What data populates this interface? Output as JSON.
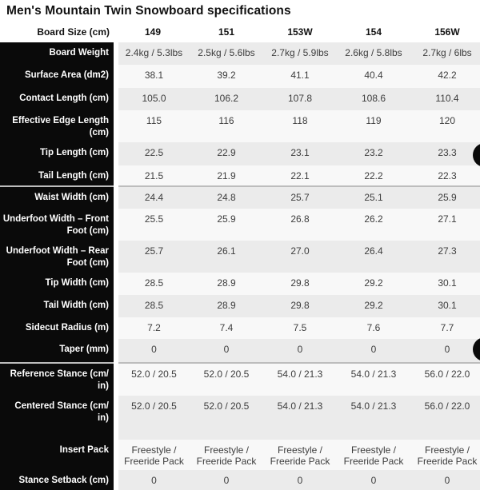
{
  "title": "Men's Mountain Twin Snowboard specifications",
  "colors": {
    "label_column_bg": "#0a0a0a",
    "label_text": "#ffffff",
    "stripe_gray": "#ebebeb",
    "stripe_light": "#f8f8f8",
    "group_separator": "#bdbdbd",
    "floating_button": "#0a0a0a"
  },
  "table": {
    "header": {
      "label": "Board Size (cm)",
      "columns": [
        "149",
        "151",
        "153W",
        "154",
        "156W"
      ]
    },
    "rows": [
      {
        "label": "Board Weight",
        "values": [
          "2.4kg / 5.3lbs",
          "2.5kg / 5.6lbs",
          "2.7kg / 5.9lbs",
          "2.6kg / 5.8lbs",
          "2.7kg / 6lbs"
        ]
      },
      {
        "label": "Surface Area (dm2)",
        "values": [
          "38.1",
          "39.2",
          "41.1",
          "40.4",
          "42.2"
        ]
      },
      {
        "label": "Contact Length (cm)",
        "values": [
          "105.0",
          "106.2",
          "107.8",
          "108.6",
          "110.4"
        ]
      },
      {
        "label": "Effective Edge Length (cm)",
        "values": [
          "115",
          "116",
          "118",
          "119",
          "120"
        ]
      },
      {
        "label": "Tip Length (cm)",
        "values": [
          "22.5",
          "22.9",
          "23.1",
          "23.2",
          "23.3"
        ]
      },
      {
        "label": "Tail Length (cm)",
        "values": [
          "21.5",
          "21.9",
          "22.1",
          "22.2",
          "22.3"
        ]
      },
      {
        "label": "Waist Width (cm)",
        "separator_before": true,
        "values": [
          "24.4",
          "24.8",
          "25.7",
          "25.1",
          "25.9"
        ]
      },
      {
        "label": "Underfoot Width – Front Foot (cm)",
        "values": [
          "25.5",
          "25.9",
          "26.8",
          "26.2",
          "27.1"
        ]
      },
      {
        "label": "Underfoot Width – Rear Foot (cm)",
        "values": [
          "25.7",
          "26.1",
          "27.0",
          "26.4",
          "27.3"
        ]
      },
      {
        "label": "Tip Width (cm)",
        "values": [
          "28.5",
          "28.9",
          "29.8",
          "29.2",
          "30.1"
        ]
      },
      {
        "label": "Tail Width (cm)",
        "values": [
          "28.5",
          "28.9",
          "29.8",
          "29.2",
          "30.1"
        ]
      },
      {
        "label": "Sidecut Radius (m)",
        "values": [
          "7.2",
          "7.4",
          "7.5",
          "7.6",
          "7.7"
        ]
      },
      {
        "label": "Taper (mm)",
        "values": [
          "0",
          "0",
          "0",
          "0",
          "0"
        ]
      },
      {
        "label": "Reference Stance (cm/ in)",
        "separator_before": true,
        "values": [
          "52.0 / 20.5",
          "52.0 / 20.5",
          "54.0 / 21.3",
          "54.0 / 21.3",
          "56.0 / 22.0"
        ]
      },
      {
        "label": "Centered Stance (cm/ in)",
        "values": [
          "52.0 / 20.5",
          "52.0 / 20.5",
          "54.0 / 21.3",
          "54.0 / 21.3",
          "56.0 / 22.0"
        ]
      },
      {
        "label": "Insert Pack",
        "values": [
          "Freestyle / Freeride Pack",
          "Freestyle / Freeride Pack",
          "Freestyle / Freeride Pack",
          "Freestyle / Freeride Pack",
          "Freestyle / Freeride Pack"
        ]
      },
      {
        "label": "Stance Setback (cm)",
        "values": [
          "0",
          "0",
          "0",
          "0",
          "0"
        ]
      }
    ]
  }
}
